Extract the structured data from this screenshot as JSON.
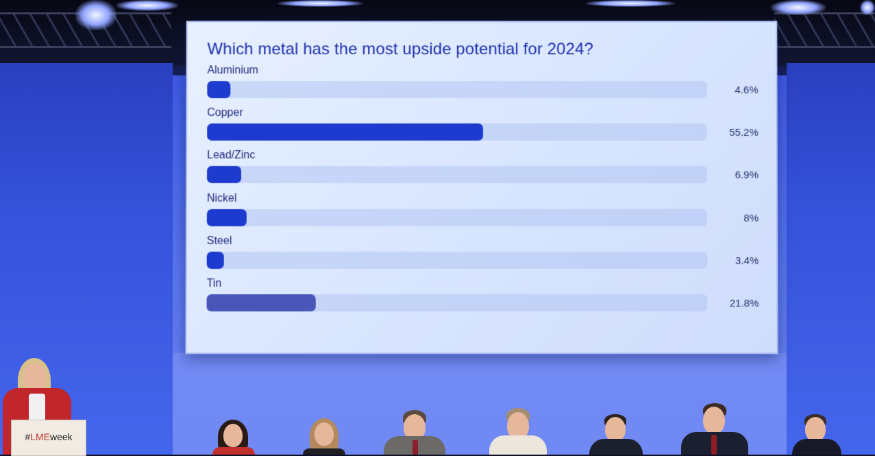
{
  "chart_data": {
    "type": "bar",
    "orientation": "horizontal",
    "title": "Which metal has the most upside potential for 2024?",
    "categories": [
      "Aluminium",
      "Copper",
      "Lead/Zinc",
      "Nickel",
      "Steel",
      "Tin"
    ],
    "values": [
      4.6,
      55.2,
      6.9,
      8,
      3.4,
      21.8
    ],
    "value_labels": [
      "4.6%",
      "55.2%",
      "6.9%",
      "8%",
      "3.4%",
      "21.8%"
    ],
    "xlim": [
      0,
      100
    ],
    "grid": false,
    "legend": "none",
    "colors": {
      "bar": "#1e3bd0",
      "bar_tin": "#4a57b8",
      "track": "#b8c8ef",
      "title": "#1c2fb0"
    }
  },
  "podium": {
    "hash": "#",
    "brand": "LME",
    "suffix": "week"
  }
}
